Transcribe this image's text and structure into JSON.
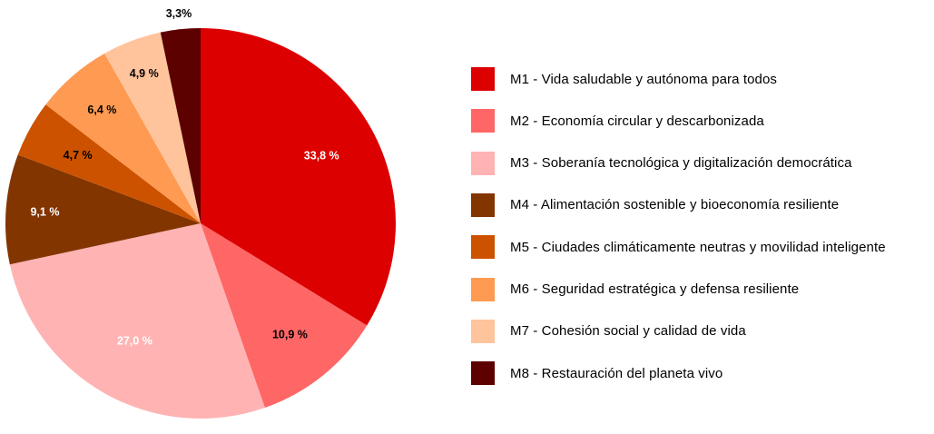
{
  "chart_data": {
    "type": "pie",
    "slices": [
      {
        "name": "M1 - Vida saludable y autónoma para todos",
        "value": 33.8,
        "label": "33,8 %",
        "color": "#dd0000",
        "label_color": "#ffffff"
      },
      {
        "name": "M2 - Economía circular y descarbonizada",
        "value": 10.9,
        "label": "10,9 %",
        "color": "#ff6666",
        "label_color": "#000000"
      },
      {
        "name": "M3 - Soberanía tecnológica y digitalización democrática",
        "value": 27.0,
        "label": "27,0 %",
        "color": "#ffb3b3",
        "label_color": "#ffffff"
      },
      {
        "name": "M4 - Alimentación sostenible y bioeconomía resiliente",
        "value": 9.1,
        "label": "9,1 %",
        "color": "#833500",
        "label_color": "#ffffff"
      },
      {
        "name": "M5 - Ciudades climáticamente neutras y movilidad inteligente",
        "value": 4.7,
        "label": "4,7 %",
        "color": "#cc5200",
        "label_color": "#000000"
      },
      {
        "name": "M6 - Seguridad estratégica y defensa resiliente",
        "value": 6.4,
        "label": "6,4 %",
        "color": "#ff9a52",
        "label_color": "#000000"
      },
      {
        "name": "M7 - Cohesión social y calidad de vida",
        "value": 4.9,
        "label": "4,9 %",
        "color": "#ffc49c",
        "label_color": "#000000"
      },
      {
        "name": "M8 - Restauración del planeta vivo",
        "value": 3.3,
        "label": "3,3%",
        "color": "#5c0000",
        "label_color": "#000000"
      }
    ],
    "start_angle": "12 o'clock",
    "direction": "clockwise",
    "legend_position": "right"
  }
}
